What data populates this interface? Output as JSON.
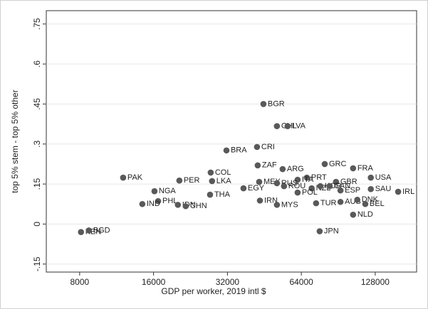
{
  "chart_data": {
    "type": "scatter",
    "y_label": "top 5% stem - top 5% other",
    "x_label": "GDP per worker, 2019 intl $",
    "labels": [
      "BGR",
      "CHL",
      "LVA",
      "BRA",
      "CRI",
      "ZAF",
      "ARG",
      "GRC",
      "FRA",
      "USA",
      "COL",
      "PAK",
      "PER",
      "LKA",
      "MEX",
      "PRT",
      "ITA",
      "RUS",
      "ROU",
      "GBR",
      "NZL",
      "KOR",
      "CAN",
      "ESP",
      "NGA",
      "SAU",
      "IRL",
      "THA",
      "EGY",
      "POL",
      "AUS",
      "DNK",
      "BEL",
      "PHL",
      "IND",
      "IDN",
      "CHN",
      "IRN",
      "MYS",
      "TUR",
      "NLD",
      "JPN",
      "KEN",
      "BGD"
    ],
    "x": [
      44850,
      50900,
      56250,
      31700,
      42230,
      42500,
      53700,
      79700,
      104000,
      122800,
      27350,
      12030,
      20380,
      27700,
      43100,
      67400,
      61800,
      50900,
      54400,
      88600,
      70500,
      76500,
      83500,
      92400,
      16140,
      122800,
      158700,
      27180,
      37200,
      61800,
      92400,
      108200,
      116600,
      16700,
      14400,
      20100,
      21640,
      43400,
      50900,
      73500,
      104000,
      76000,
      8100,
      8720
    ],
    "values": [
      0.45,
      0.367,
      0.367,
      0.276,
      0.289,
      0.22,
      0.206,
      0.225,
      0.209,
      0.174,
      0.193,
      0.174,
      0.163,
      0.161,
      0.158,
      0.174,
      0.166,
      0.153,
      0.142,
      0.158,
      0.134,
      0.142,
      0.142,
      0.126,
      0.123,
      0.131,
      0.121,
      0.11,
      0.134,
      0.118,
      0.083,
      0.091,
      0.075,
      0.086,
      0.075,
      0.072,
      0.067,
      0.088,
      0.072,
      0.078,
      0.035,
      -0.027,
      -0.03,
      -0.024
    ],
    "color": "#595959",
    "xlim": [
      5850,
      188700
    ],
    "ylim": [
      -0.18,
      0.8
    ],
    "xscale": "log",
    "grid": true,
    "xticks": [
      8000,
      16000,
      32000,
      64000,
      128000
    ],
    "yticks": [
      {
        "value": -0.15,
        "label": "-.15"
      },
      {
        "value": 0,
        "label": "0"
      },
      {
        "value": 0.15,
        "label": ".15"
      },
      {
        "value": 0.3,
        "label": ".3"
      },
      {
        "value": 0.45,
        "label": ".45"
      },
      {
        "value": 0.6,
        "label": ".6"
      },
      {
        "value": 0.75,
        "label": ".75"
      }
    ]
  }
}
